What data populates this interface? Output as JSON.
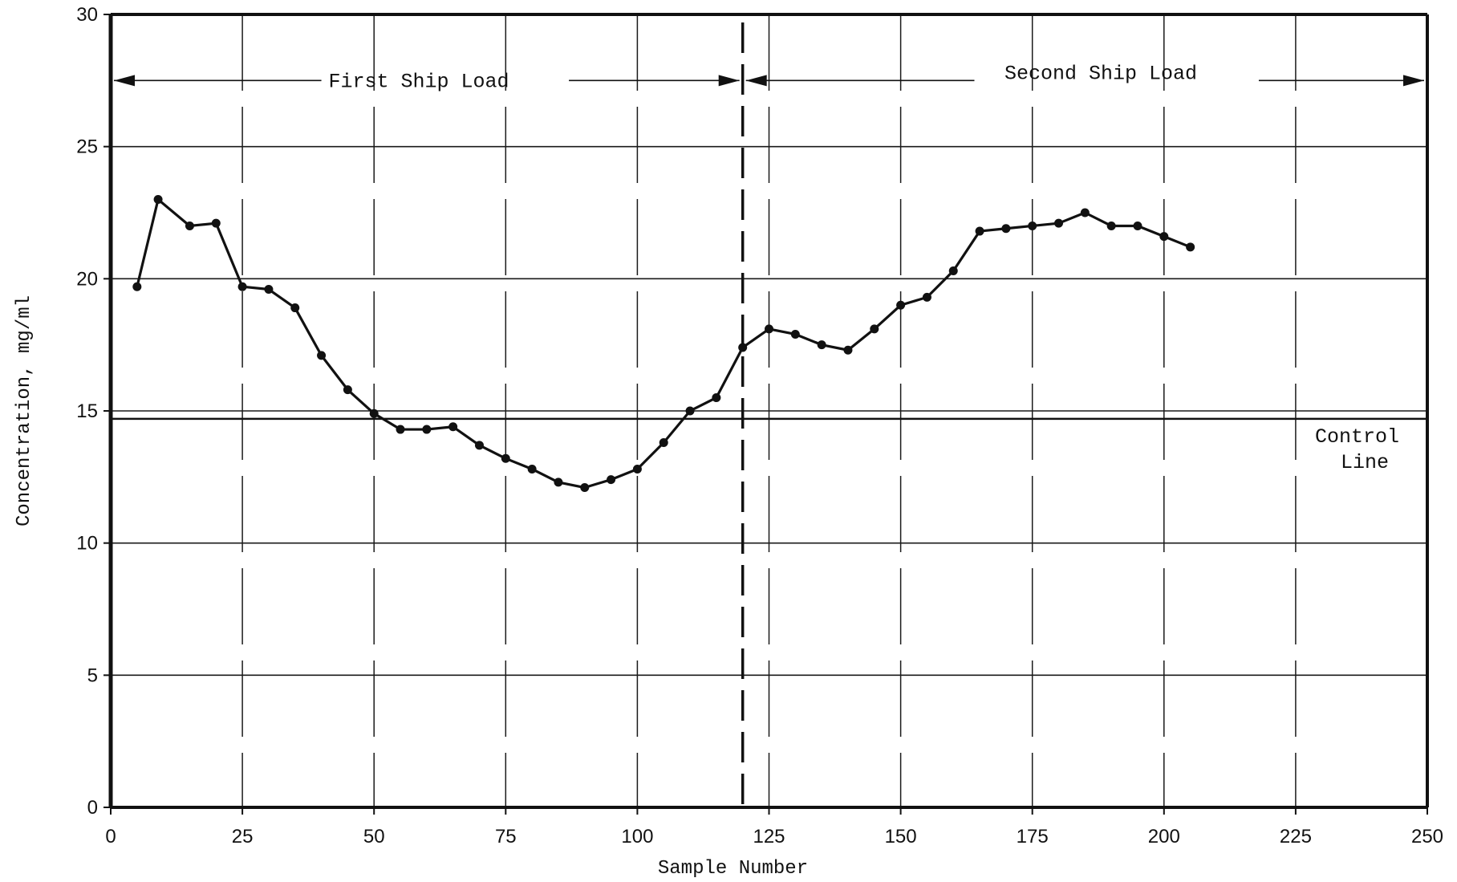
{
  "chart_data": {
    "type": "line",
    "title": "",
    "xlabel": "Sample Number",
    "ylabel": "Concentration, mg/ml",
    "xlim": [
      0,
      250
    ],
    "ylim": [
      0,
      30
    ],
    "x_ticks": [
      0,
      25,
      50,
      75,
      100,
      125,
      150,
      175,
      200,
      225,
      250
    ],
    "y_ticks": [
      0,
      5,
      10,
      15,
      20,
      25,
      30
    ],
    "grid": true,
    "legend": "none",
    "series": [
      {
        "x": [
          5,
          9,
          15,
          20,
          25,
          30,
          35,
          40,
          45,
          50,
          55,
          60,
          65,
          70,
          75,
          80,
          85,
          90,
          95,
          100,
          105,
          110,
          115,
          120,
          125,
          130,
          135,
          140,
          145,
          150,
          155,
          160,
          165,
          170,
          175,
          180,
          185,
          190,
          195,
          200,
          205
        ],
        "values": [
          19.7,
          23.0,
          22.0,
          22.1,
          19.7,
          19.6,
          18.9,
          17.1,
          15.8,
          14.9,
          14.3,
          14.3,
          14.4,
          13.7,
          13.2,
          12.8,
          12.3,
          12.1,
          12.4,
          12.8,
          13.8,
          15.0,
          15.5,
          17.4,
          18.1,
          17.9,
          17.5,
          17.3,
          18.1,
          19.0,
          19.3,
          20.3,
          21.8,
          21.9,
          22.0,
          22.1,
          22.5,
          22.0,
          22.0,
          21.6,
          21.2
        ]
      }
    ],
    "control_line": {
      "y": 14.7,
      "label_line1": "Control",
      "label_line2": "Line"
    },
    "divider": {
      "x": 120
    },
    "annotations": {
      "first_load": "First Ship Load",
      "second_load": "Second Ship Load"
    }
  }
}
